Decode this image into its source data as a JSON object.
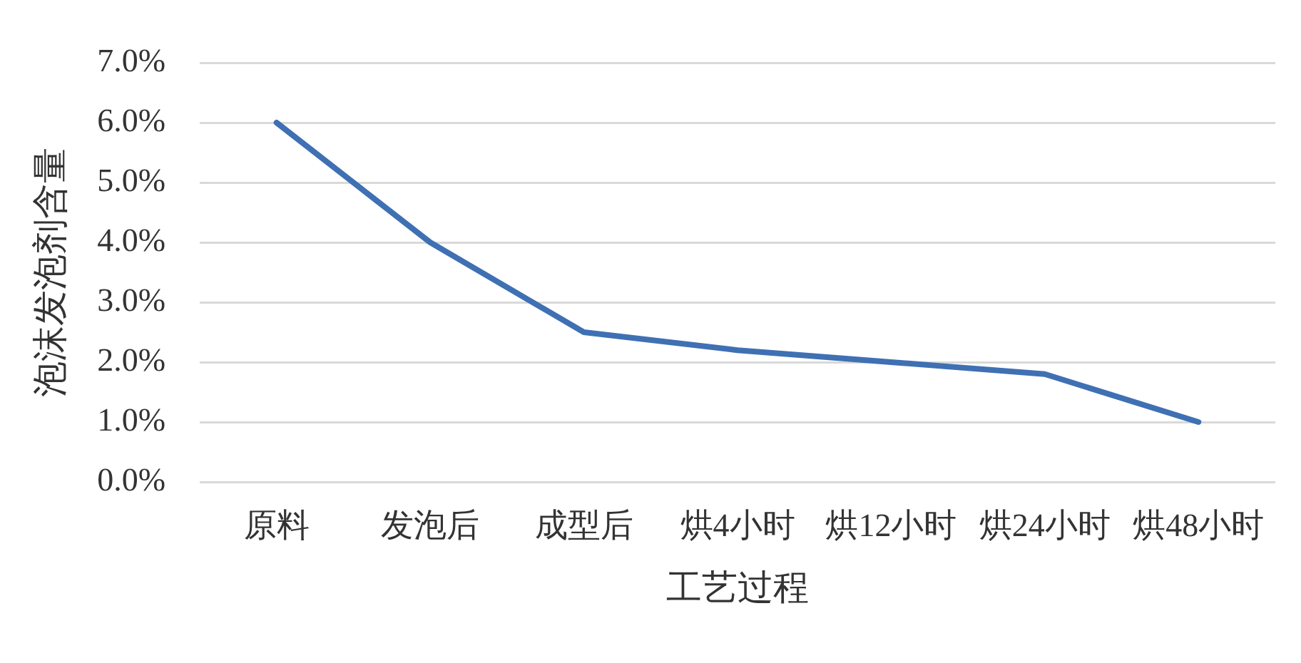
{
  "chart_data": {
    "type": "line",
    "xlabel": "工艺过程",
    "ylabel": "泡沫发泡剂含量",
    "categories": [
      "原料",
      "发泡后",
      "成型后",
      "烘4小时",
      "烘12小时",
      "烘24小时",
      "烘48小时"
    ],
    "series": [
      {
        "color": "#3f70b3",
        "values": [
          6.0,
          4.0,
          2.5,
          2.2,
          2.0,
          1.8,
          1.0
        ]
      }
    ],
    "ylim": [
      0,
      7
    ],
    "yticks": [
      {
        "value": 0,
        "label": "0.0%"
      },
      {
        "value": 1,
        "label": "1.0%"
      },
      {
        "value": 2,
        "label": "2.0%"
      },
      {
        "value": 3,
        "label": "3.0%"
      },
      {
        "value": 4,
        "label": "4.0%"
      },
      {
        "value": 5,
        "label": "5.0%"
      },
      {
        "value": 6,
        "label": "6.0%"
      },
      {
        "value": 7,
        "label": "7.0%"
      }
    ],
    "grid": "y",
    "marker": "none"
  }
}
